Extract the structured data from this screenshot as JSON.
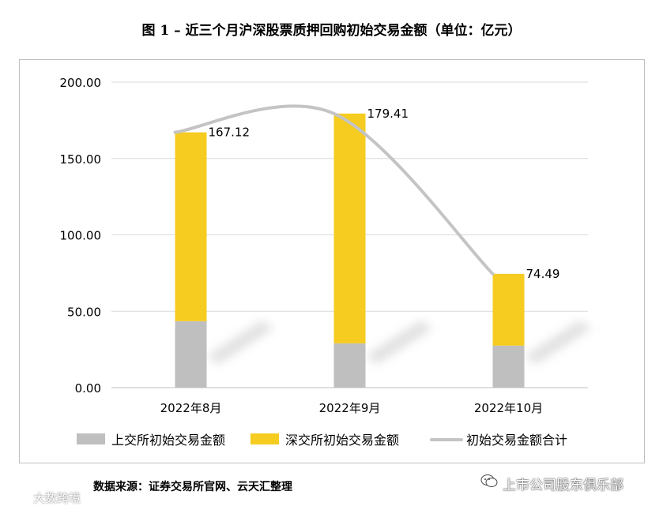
{
  "title": "图 1 –  近三个月沪深股票质押回购初始交易金额（单位：亿元）",
  "source_note": "数据来源：证券交易所官网、云天汇整理",
  "brand_text": "上市公司股东俱乐部",
  "watermark_text": "大数跨境",
  "chart_data": {
    "type": "bar",
    "stacked": true,
    "categories": [
      "2022年8月",
      "2022年9月",
      "2022年10月"
    ],
    "ylim": [
      0,
      200
    ],
    "yticks": [
      0,
      50,
      100,
      150,
      200
    ],
    "ytick_labels": [
      "0.00",
      "50.00",
      "100.00",
      "150.00",
      "200.00"
    ],
    "grid": true,
    "legend_position": "bottom",
    "series": [
      {
        "name": "上交所初始交易金额",
        "type": "bar",
        "color": "#bfbfbf",
        "values": [
          43.5,
          29.0,
          27.5
        ]
      },
      {
        "name": "深交所初始交易金额",
        "type": "bar",
        "color": "#f5cc1f",
        "values": [
          123.62,
          150.41,
          46.99
        ]
      },
      {
        "name": "初始交易金额合计",
        "type": "line",
        "color": "#c4c4c4",
        "values": [
          167.12,
          179.41,
          74.49
        ],
        "labels": [
          "167.12",
          "179.41",
          "74.49"
        ]
      }
    ]
  }
}
